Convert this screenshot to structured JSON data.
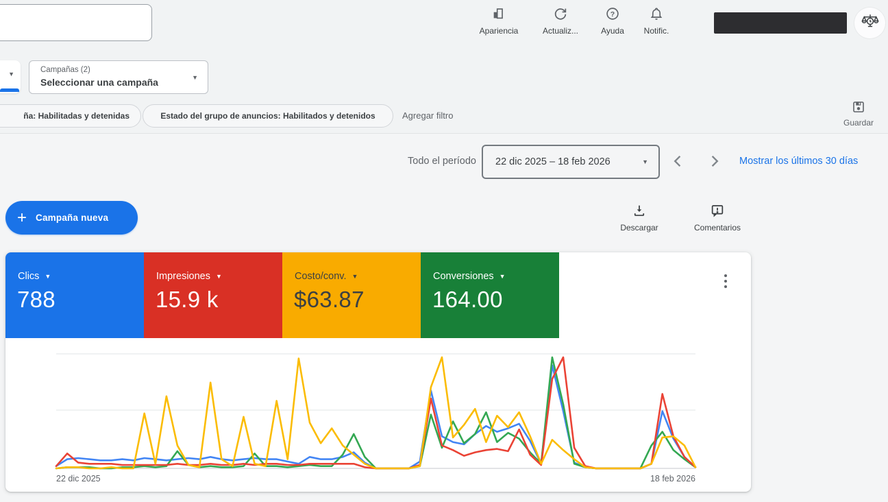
{
  "colors": {
    "accent_blue": "#1a73e8",
    "chart_blue": "#4285f4",
    "chart_red": "#ea4335",
    "chart_yellow": "#fbbc04",
    "chart_green": "#34a853"
  },
  "topbar": {
    "search_value": "",
    "actions": [
      {
        "icon": "bar-chart-icon",
        "label": "Apariencia"
      },
      {
        "icon": "refresh-icon",
        "label": "Actualiz..."
      },
      {
        "icon": "help-icon",
        "label": "Ayuda"
      },
      {
        "icon": "bell-icon",
        "label": "Notific."
      }
    ]
  },
  "campaign_bar": {
    "selector_label": "Campañas (2)",
    "selector_value": "Seleccionar una campaña"
  },
  "filter_bar": {
    "chip_campaign_status": "ña: Habilitadas y detenidas",
    "chip_adgroup_status": "Estado del grupo de anuncios: Habilitados y detenidos",
    "add_filter_label": "Agregar filtro",
    "save_label": "Guardar"
  },
  "date_bar": {
    "period_label": "Todo el período",
    "range_value": "22 dic 2025 – 18 feb 2026",
    "show_last_label": "Mostrar los últimos 30 días"
  },
  "actions_row": {
    "new_campaign_label": "Campaña nueva",
    "download_label": "Descargar",
    "comments_label": "Comentarios"
  },
  "scorecards": [
    {
      "metric": "Clics",
      "value": "788",
      "color": "#1a73e8",
      "text_color": "#ffffff"
    },
    {
      "metric": "Impresiones",
      "value": "15.9 k",
      "color": "#d93025",
      "text_color": "#ffffff"
    },
    {
      "metric": "Costo/conv.",
      "value": "$63.87",
      "color": "#f9ab00",
      "text_color": "#3c4043"
    },
    {
      "metric": "Conversiones",
      "value": "164.00",
      "color": "#188038",
      "text_color": "#ffffff"
    }
  ],
  "chart_data": {
    "type": "line",
    "x_unit": "day",
    "n_points": 59,
    "x_start_label": "22 dic 2025",
    "x_end_label": "18 feb 2026",
    "y_axis": "unlabeled; values normalized 0-100 of plot height (baseline to top gridline)",
    "grid": "3 horizontal gridlines, no y tick labels",
    "legend": "none (series colored to match scorecards)",
    "series": [
      {
        "name": "clics",
        "color": "#4285f4",
        "values": [
          2,
          8,
          9,
          8,
          7,
          7,
          8,
          7,
          9,
          8,
          7,
          8,
          9,
          8,
          10,
          8,
          7,
          8,
          9,
          8,
          8,
          6,
          4,
          10,
          8,
          8,
          10,
          14,
          5,
          0,
          0,
          0,
          0,
          6,
          68,
          28,
          23,
          21,
          30,
          37,
          32,
          35,
          39,
          24,
          4,
          90,
          50,
          5,
          1,
          0,
          0,
          0,
          0,
          0,
          4,
          50,
          26,
          10,
          1
        ]
      },
      {
        "name": "conversiones",
        "color": "#34a853",
        "values": [
          0,
          1,
          1,
          1,
          0,
          0,
          1,
          1,
          2,
          1,
          2,
          15,
          3,
          1,
          2,
          1,
          1,
          2,
          13,
          2,
          2,
          1,
          2,
          3,
          2,
          2,
          12,
          30,
          10,
          0,
          0,
          0,
          0,
          2,
          47,
          18,
          41,
          22,
          30,
          49,
          23,
          31,
          26,
          14,
          4,
          97,
          56,
          4,
          1,
          0,
          0,
          0,
          0,
          0,
          20,
          32,
          16,
          8,
          1
        ]
      },
      {
        "name": "impresiones",
        "color": "#ea4335",
        "values": [
          2,
          13,
          5,
          4,
          4,
          4,
          3,
          3,
          3,
          3,
          3,
          4,
          3,
          3,
          4,
          3,
          3,
          4,
          3,
          4,
          4,
          3,
          3,
          4,
          4,
          4,
          4,
          4,
          1,
          0,
          0,
          0,
          0,
          3,
          61,
          20,
          16,
          11,
          14,
          16,
          17,
          15,
          34,
          12,
          3,
          78,
          97,
          18,
          2,
          0,
          0,
          0,
          0,
          0,
          4,
          65,
          28,
          10,
          1
        ]
      },
      {
        "name": "costo_conv",
        "color": "#fbbc04",
        "values": [
          0,
          1,
          1,
          0,
          0,
          1,
          0,
          0,
          48,
          4,
          63,
          20,
          3,
          1,
          75,
          8,
          2,
          45,
          4,
          2,
          59,
          8,
          96,
          40,
          22,
          35,
          20,
          12,
          4,
          0,
          0,
          0,
          0,
          2,
          71,
          97,
          27,
          38,
          52,
          23,
          46,
          36,
          49,
          28,
          4,
          25,
          16,
          8,
          1,
          0,
          0,
          0,
          0,
          0,
          4,
          27,
          28,
          20,
          1
        ]
      }
    ]
  }
}
